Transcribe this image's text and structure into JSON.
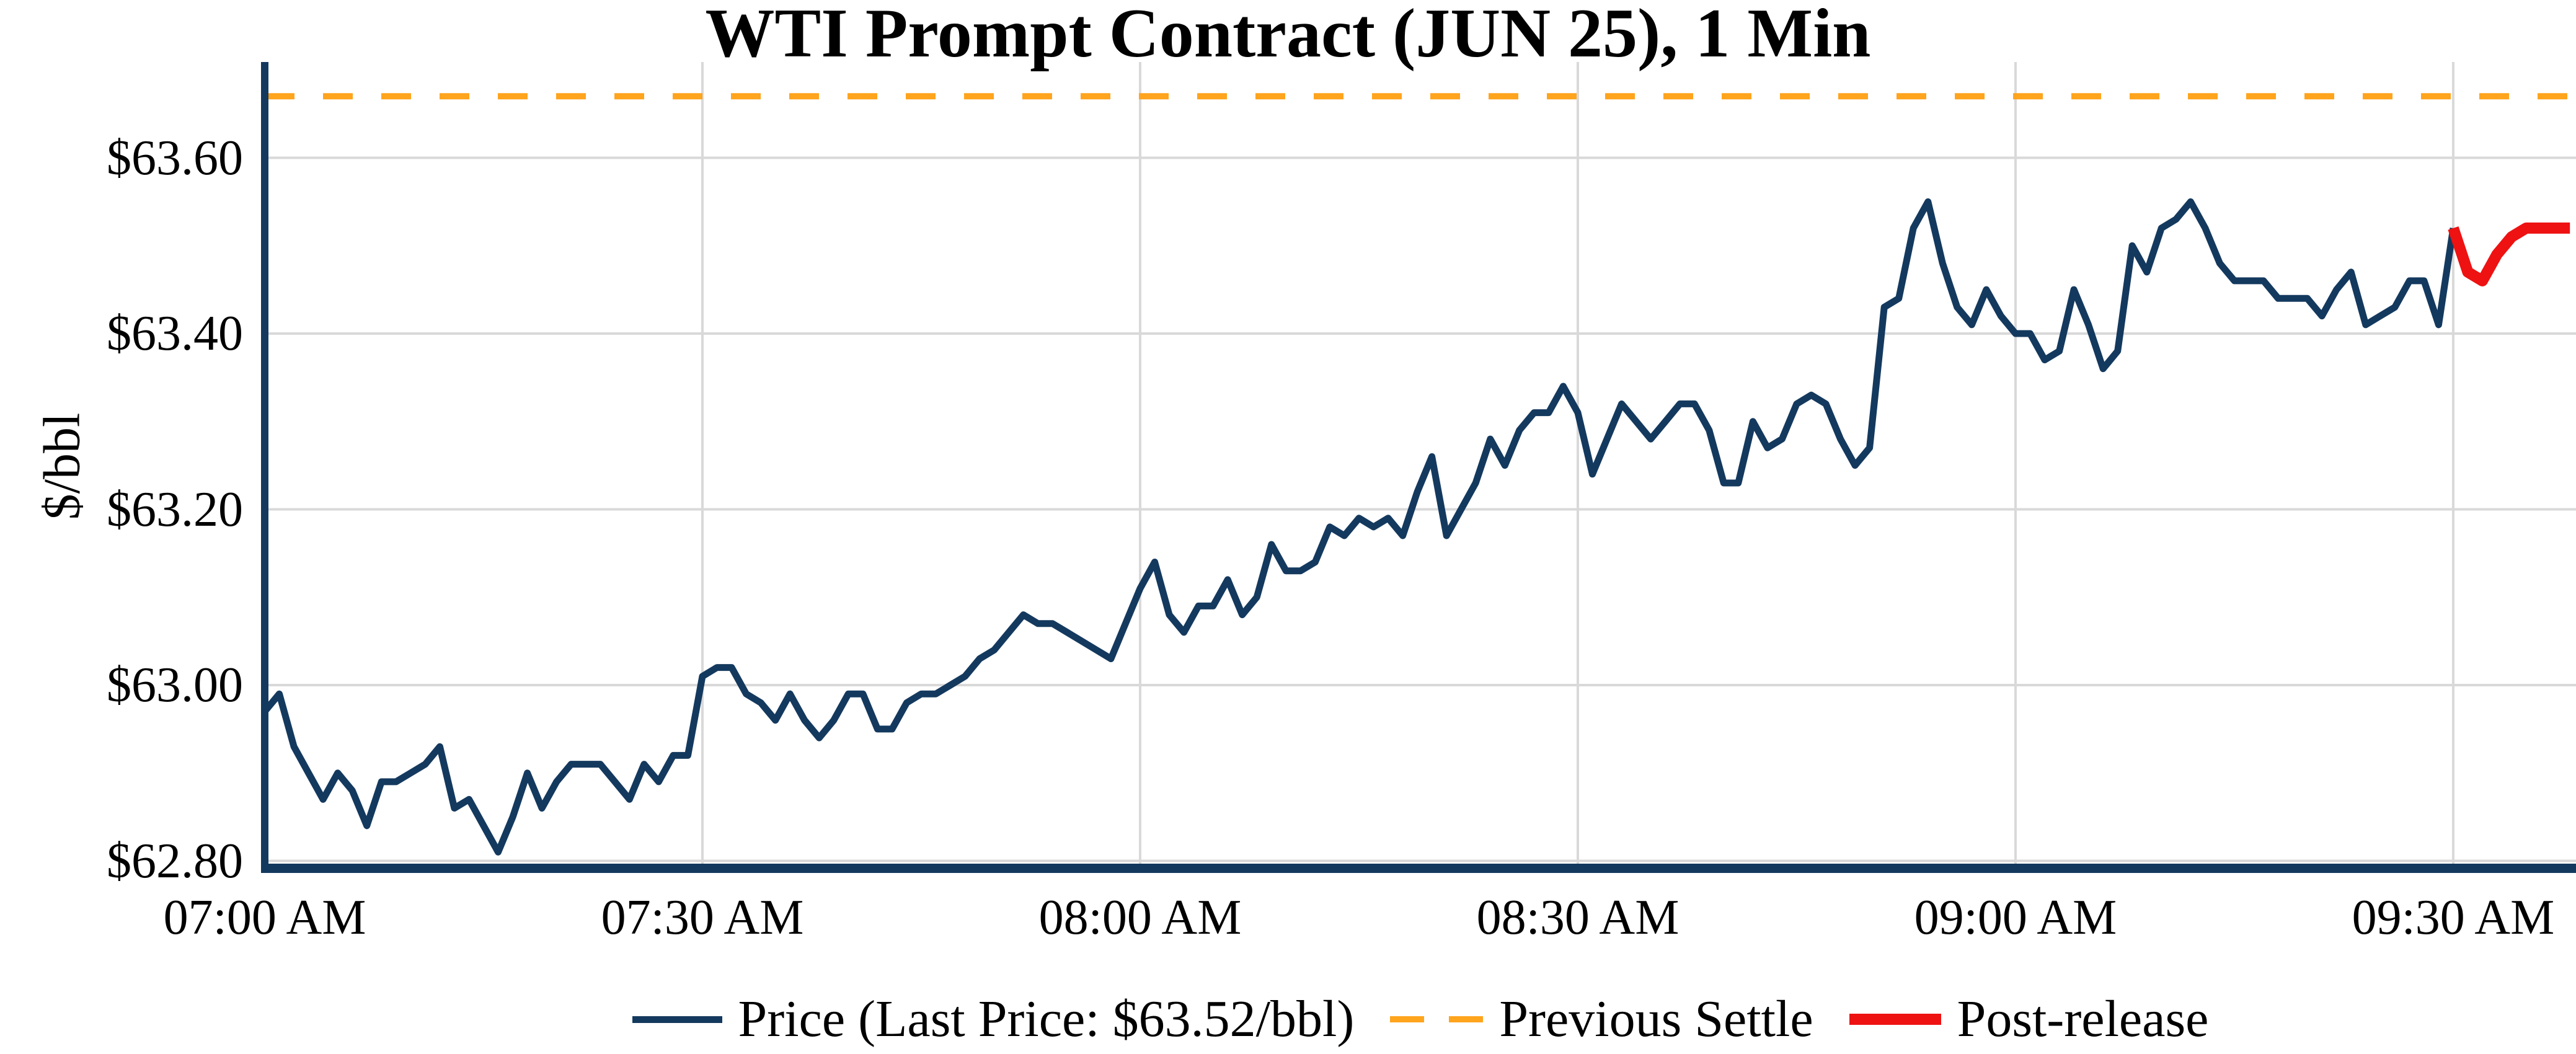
{
  "title": "WTI Prompt Contract (JUN 25), 1 Min",
  "colors": {
    "price": "#14395e",
    "settle": "#ffa41d",
    "post_release": "#ee1212",
    "grid": "#d9d9d9",
    "spine": "#14395e",
    "text": "#000000",
    "background": "#ffffff"
  },
  "legend": {
    "items": [
      {
        "label": "Price (Last Price: $63.52/bbl)",
        "swatch": "solid-line",
        "color_key": "price"
      },
      {
        "label": "Previous Settle",
        "swatch": "dashed-line",
        "color_key": "settle"
      },
      {
        "label": "Post-release",
        "swatch": "thick-line",
        "color_key": "post_release"
      }
    ]
  },
  "chart_data": {
    "type": "line",
    "title": "WTI Prompt Contract (JUN 25), 1 Min",
    "xlabel": "",
    "ylabel": "$/bbl",
    "grid": true,
    "legend_position": "bottom-center",
    "ylim": [
      62.79,
      63.71
    ],
    "x_unit": "minutes after 07:00 AM",
    "xlim_minutes": [
      0,
      158
    ],
    "x_ticks": [
      {
        "minute": 0,
        "label": "07:00 AM"
      },
      {
        "minute": 30,
        "label": "07:30 AM"
      },
      {
        "minute": 60,
        "label": "08:00 AM"
      },
      {
        "minute": 90,
        "label": "08:30 AM"
      },
      {
        "minute": 120,
        "label": "09:00 AM"
      },
      {
        "minute": 150,
        "label": "09:30 AM"
      }
    ],
    "y_ticks": [
      {
        "value": 62.8,
        "label": "$62.80"
      },
      {
        "value": 63.0,
        "label": "$63.00"
      },
      {
        "value": 63.2,
        "label": "$63.20"
      },
      {
        "value": 63.4,
        "label": "$63.40"
      },
      {
        "value": 63.6,
        "label": "$63.60"
      }
    ],
    "previous_settle": 63.67,
    "last_price": 63.52,
    "series": [
      {
        "name": "Price",
        "color_key": "price",
        "style": "solid",
        "start_minute": 0,
        "values": [
          62.97,
          62.99,
          62.93,
          62.9,
          62.87,
          62.9,
          62.88,
          62.84,
          62.89,
          62.89,
          62.9,
          62.91,
          62.93,
          62.86,
          62.87,
          62.84,
          62.81,
          62.85,
          62.9,
          62.86,
          62.89,
          62.91,
          62.91,
          62.91,
          62.89,
          62.87,
          62.91,
          62.89,
          62.92,
          62.92,
          63.01,
          63.02,
          63.02,
          62.99,
          62.98,
          62.96,
          62.99,
          62.96,
          62.94,
          62.96,
          62.99,
          62.99,
          62.95,
          62.95,
          62.98,
          62.99,
          62.99,
          63.0,
          63.01,
          63.03,
          63.04,
          63.06,
          63.08,
          63.07,
          63.07,
          63.06,
          63.05,
          63.04,
          63.03,
          63.07,
          63.11,
          63.14,
          63.08,
          63.06,
          63.09,
          63.09,
          63.12,
          63.08,
          63.1,
          63.16,
          63.13,
          63.13,
          63.14,
          63.18,
          63.17,
          63.19,
          63.18,
          63.19,
          63.17,
          63.22,
          63.26,
          63.17,
          63.2,
          63.23,
          63.28,
          63.25,
          63.29,
          63.31,
          63.31,
          63.34,
          63.31,
          63.24,
          63.28,
          63.32,
          63.3,
          63.28,
          63.3,
          63.32,
          63.32,
          63.29,
          63.23,
          63.23,
          63.3,
          63.27,
          63.28,
          63.32,
          63.33,
          63.32,
          63.28,
          63.25,
          63.27,
          63.43,
          63.44,
          63.52,
          63.55,
          63.48,
          63.43,
          63.41,
          63.45,
          63.42,
          63.4,
          63.4,
          63.37,
          63.38,
          63.45,
          63.41,
          63.36,
          63.38,
          63.5,
          63.47,
          63.52,
          63.53,
          63.55,
          63.52,
          63.48,
          63.46,
          63.46,
          63.46,
          63.44,
          63.44,
          63.44,
          63.42,
          63.45,
          63.47,
          63.41,
          63.42,
          63.43,
          63.46,
          63.46,
          63.41,
          63.52
        ]
      },
      {
        "name": "Post-release",
        "color_key": "post_release",
        "style": "solid",
        "start_minute": 150,
        "values": [
          63.52,
          63.47,
          63.46,
          63.49,
          63.51,
          63.52,
          63.52,
          63.52,
          63.52
        ]
      }
    ],
    "reference_lines": [
      {
        "name": "Previous Settle",
        "value": 63.67,
        "style": "dashed",
        "color_key": "settle"
      }
    ]
  }
}
